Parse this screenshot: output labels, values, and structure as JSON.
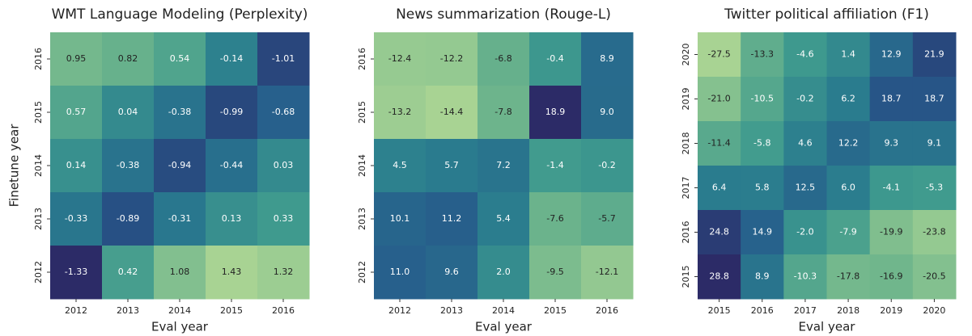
{
  "chart_data": [
    {
      "type": "heatmap",
      "title": "WMT Language Modeling (Perplexity)",
      "xlabel": "Eval year",
      "ylabel": "Finetune year",
      "x_categories": [
        "2012",
        "2013",
        "2014",
        "2015",
        "2016"
      ],
      "y_categories": [
        "2016",
        "2015",
        "2014",
        "2013",
        "2012"
      ],
      "values": [
        [
          0.95,
          0.82,
          0.54,
          -0.14,
          -1.01
        ],
        [
          0.57,
          0.04,
          -0.38,
          -0.99,
          -0.68
        ],
        [
          0.14,
          -0.38,
          -0.94,
          -0.44,
          0.03
        ],
        [
          -0.33,
          -0.89,
          -0.31,
          0.13,
          0.33
        ],
        [
          -1.33,
          0.42,
          1.08,
          1.43,
          1.32
        ]
      ],
      "colormap": [
        "#2c2b67",
        "#265a8b",
        "#2a7c8e",
        "#3f9a8e",
        "#6cb48c",
        "#a8d393"
      ]
    },
    {
      "type": "heatmap",
      "title": "News summarization (Rouge-L)",
      "xlabel": "Eval year",
      "x_categories": [
        "2012",
        "2013",
        "2014",
        "2015",
        "2016"
      ],
      "y_categories": [
        "2016",
        "2015",
        "2014",
        "2013",
        "2012"
      ],
      "values": [
        [
          -12.4,
          -12.2,
          -6.8,
          -0.4,
          8.9
        ],
        [
          -13.2,
          -14.4,
          -7.8,
          18.9,
          9.0
        ],
        [
          4.5,
          5.7,
          7.2,
          -1.4,
          -0.2
        ],
        [
          10.1,
          11.2,
          5.4,
          -7.6,
          -5.7
        ],
        [
          11.0,
          9.6,
          2.0,
          -9.5,
          -12.1
        ]
      ],
      "value_labels": [
        [
          "-12.4",
          "-12.2",
          "-6.8",
          "-0.4",
          "8.9"
        ],
        [
          "-13.2",
          "-14.4",
          "-7.8",
          "18.9",
          "9.0"
        ],
        [
          "4.5",
          "5.7",
          "7.2",
          "-1.4",
          "-0.2"
        ],
        [
          "10.1",
          "11.2",
          "5.4",
          "-7.6",
          "-5.7"
        ],
        [
          "11.0",
          "9.6",
          "2.0",
          "-9.5",
          "-12.1"
        ]
      ],
      "colormap": [
        "#a8d393",
        "#6cb48c",
        "#3f9a8e",
        "#2a7c8e",
        "#265a8b",
        "#2c2b67"
      ]
    },
    {
      "type": "heatmap",
      "title": "Twitter political affiliation (F1)",
      "xlabel": "Eval year",
      "x_categories": [
        "2015",
        "2016",
        "2017",
        "2018",
        "2019",
        "2020"
      ],
      "y_categories": [
        "2020",
        "2019",
        "2018",
        "2017",
        "2016",
        "2015"
      ],
      "values": [
        [
          -27.5,
          -13.3,
          -4.6,
          1.4,
          12.9,
          21.9
        ],
        [
          -21.0,
          -10.5,
          -0.2,
          6.2,
          18.7,
          18.7
        ],
        [
          -11.4,
          -5.8,
          4.6,
          12.2,
          9.3,
          9.1
        ],
        [
          6.4,
          5.8,
          12.5,
          6.0,
          -4.1,
          -5.3
        ],
        [
          24.8,
          14.9,
          -2.0,
          -7.9,
          -19.9,
          -23.8
        ],
        [
          28.8,
          8.9,
          -10.3,
          -17.8,
          -16.9,
          -20.5
        ]
      ],
      "value_labels": [
        [
          "-27.5",
          "-13.3",
          "-4.6",
          "1.4",
          "12.9",
          "21.9"
        ],
        [
          "-21.0",
          "-10.5",
          "-0.2",
          "6.2",
          "18.7",
          "18.7"
        ],
        [
          "-11.4",
          "-5.8",
          "4.6",
          "12.2",
          "9.3",
          "9.1"
        ],
        [
          "6.4",
          "5.8",
          "12.5",
          "6.0",
          "-4.1",
          "-5.3"
        ],
        [
          "24.8",
          "14.9",
          "-2.0",
          "-7.9",
          "-19.9",
          "-23.8"
        ],
        [
          "28.8",
          "8.9",
          "-10.3",
          "-17.8",
          "-16.9",
          "-20.5"
        ]
      ],
      "colormap": [
        "#a8d393",
        "#6cb48c",
        "#3f9a8e",
        "#2a7c8e",
        "#265a8b",
        "#2c2b67"
      ]
    }
  ]
}
